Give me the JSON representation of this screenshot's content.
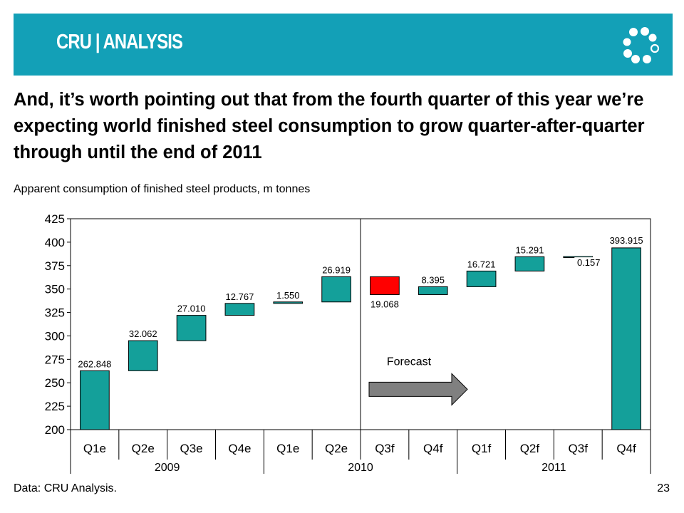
{
  "brand": {
    "logo_text": "CRU | ANALYSIS",
    "header_color": "#13a0b7"
  },
  "headline": "And, it’s worth pointing out that from the fourth quarter of this year we’re expecting world finished steel consumption to grow quarter-after-quarter through until the end of 2011",
  "subtitle": "Apparent consumption of finished steel products, m tonnes",
  "source": "Data: CRU Analysis.",
  "page_number": "23",
  "chart_data": {
    "type": "bar",
    "subtype": "waterfall",
    "ylim": [
      200,
      425
    ],
    "yticks": [
      200,
      225,
      250,
      275,
      300,
      325,
      350,
      375,
      400,
      425
    ],
    "categories": [
      "Q1e",
      "Q2e",
      "Q3e",
      "Q4e",
      "Q1e",
      "Q2e",
      "Q3f",
      "Q4f",
      "Q1f",
      "Q2f",
      "Q3f",
      "Q4f"
    ],
    "year_groups": [
      {
        "label": "2009",
        "start": 0,
        "end": 3
      },
      {
        "label": "2010",
        "start": 4,
        "end": 7
      },
      {
        "label": "2011",
        "start": 8,
        "end": 11
      }
    ],
    "bars": [
      {
        "base": 200,
        "top": 262.848,
        "label": "262.848",
        "kind": "total"
      },
      {
        "base": 262.848,
        "top": 294.91,
        "label": "32.062",
        "kind": "increase"
      },
      {
        "base": 294.91,
        "top": 321.92,
        "label": "27.010",
        "kind": "increase"
      },
      {
        "base": 321.92,
        "top": 334.687,
        "label": "12.767",
        "kind": "increase"
      },
      {
        "base": 334.687,
        "top": 336.237,
        "label": "1.550",
        "kind": "increase"
      },
      {
        "base": 336.237,
        "top": 363.156,
        "label": "26.919",
        "kind": "increase"
      },
      {
        "base": 344.088,
        "top": 363.156,
        "label": "19.068",
        "kind": "decrease"
      },
      {
        "base": 344.088,
        "top": 352.483,
        "label": "8.395",
        "kind": "increase"
      },
      {
        "base": 352.483,
        "top": 369.204,
        "label": "16.721",
        "kind": "increase"
      },
      {
        "base": 369.204,
        "top": 384.495,
        "label": "15.291",
        "kind": "increase"
      },
      {
        "base": 384.495,
        "top": 384.652,
        "label": "0.157",
        "kind": "increase"
      },
      {
        "base": 200,
        "top": 393.915,
        "label": "393.915",
        "kind": "total"
      }
    ],
    "colors": {
      "increase": "#14a09a",
      "total": "#14a09a",
      "decrease": "#ff0000",
      "arrow": "#808080"
    },
    "divider_after_index": 5,
    "annotation": {
      "text": "Forecast"
    },
    "grid": false
  }
}
